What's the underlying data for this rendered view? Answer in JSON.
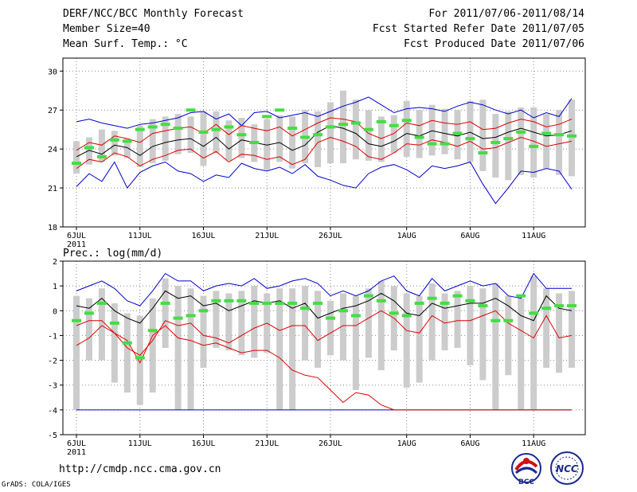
{
  "header": {
    "left": [
      "DERF/NCC/BCC Monthly Forecast",
      "Member Size=40",
      "Mean Surf. Temp.: °C"
    ],
    "right": [
      "For 2011/07/06-2011/08/14",
      "Fcst Started Refer Date 2011/07/05",
      "Fcst Produced Date 2011/07/06"
    ]
  },
  "footer": {
    "url": "http://cmdp.ncc.cma.gov.cn",
    "grads": "GrADS: COLA/IGES",
    "logo_bcc": "BCC",
    "logo_ncc": "NCC"
  },
  "colors": {
    "envelope": "#0000cc",
    "spread": "#dd0000",
    "mean": "#000000",
    "bar": "#cccccc",
    "member": "#44dd44"
  },
  "chart_data": [
    {
      "type": "line",
      "title": "Mean Surf. Temp.: °C",
      "xticks": [
        "6JUL",
        "11JUL",
        "16JUL",
        "21JUL",
        "26JUL",
        "1AUG",
        "6AUG",
        "11AUG"
      ],
      "year_label": "2011",
      "ylim": [
        18,
        31
      ],
      "yticks": [
        18,
        21,
        24,
        27,
        30
      ],
      "day0": "2011-07-06",
      "n_days": 40,
      "series": {
        "max": [
          26.1,
          26.3,
          26.0,
          25.8,
          25.6,
          25.9,
          26.0,
          26.2,
          26.4,
          26.8,
          26.9,
          26.3,
          26.7,
          25.8,
          26.8,
          26.9,
          26.4,
          26.6,
          26.8,
          26.5,
          26.9,
          27.3,
          27.6,
          28.0,
          27.4,
          26.8,
          27.1,
          27.2,
          27.1,
          26.9,
          27.3,
          27.6,
          27.4,
          27.0,
          26.7,
          27.0,
          26.4,
          26.8,
          26.5,
          27.9
        ],
        "upper": [
          23.9,
          24.5,
          24.3,
          25.0,
          24.8,
          24.5,
          25.2,
          25.4,
          25.6,
          25.7,
          25.2,
          25.9,
          25.1,
          25.8,
          25.6,
          25.4,
          25.7,
          25.0,
          25.5,
          26.0,
          26.4,
          26.3,
          26.1,
          25.2,
          24.8,
          25.2,
          26.0,
          25.8,
          26.2,
          26.0,
          25.9,
          26.1,
          25.5,
          25.6,
          26.0,
          26.3,
          26.1,
          25.7,
          25.9,
          26.3
        ],
        "mean": [
          23.4,
          23.9,
          23.6,
          24.3,
          24.1,
          23.5,
          24.2,
          24.5,
          24.7,
          24.8,
          24.2,
          24.9,
          24.0,
          24.7,
          24.5,
          24.3,
          24.5,
          23.9,
          24.3,
          25.3,
          25.8,
          25.6,
          25.2,
          24.4,
          24.2,
          24.6,
          25.2,
          25.0,
          25.4,
          25.2,
          25.0,
          25.3,
          24.8,
          24.9,
          25.3,
          25.6,
          25.3,
          25.0,
          25.1,
          25.4
        ],
        "lower": [
          22.5,
          23.2,
          23.0,
          23.7,
          23.4,
          22.7,
          23.2,
          23.5,
          23.9,
          24.0,
          23.3,
          23.8,
          23.0,
          23.6,
          23.5,
          23.2,
          23.4,
          22.8,
          23.2,
          24.5,
          24.9,
          24.6,
          24.2,
          23.4,
          23.2,
          23.7,
          24.4,
          24.3,
          24.7,
          24.5,
          24.2,
          24.6,
          24.0,
          24.1,
          24.5,
          24.9,
          24.6,
          24.2,
          24.4,
          24.6
        ],
        "min": [
          21.1,
          22.1,
          21.5,
          23.0,
          21.0,
          22.2,
          22.7,
          23.0,
          22.3,
          22.1,
          21.5,
          22.0,
          21.8,
          22.9,
          22.5,
          22.3,
          22.6,
          22.1,
          22.8,
          21.9,
          21.6,
          21.2,
          21.0,
          22.1,
          22.6,
          22.8,
          22.4,
          21.8,
          22.7,
          22.5,
          22.7,
          23.0,
          21.3,
          19.8,
          21.0,
          22.3,
          22.2,
          22.5,
          22.3,
          20.9
        ],
        "bar_top": [
          24.6,
          24.9,
          25.5,
          25.4,
          24.8,
          25.8,
          26.3,
          26.5,
          26.7,
          26.5,
          26.9,
          26.9,
          26.2,
          26.4,
          25.9,
          26.3,
          26.6,
          26.5,
          27.0,
          26.9,
          27.6,
          28.5,
          27.8,
          27.0,
          26.5,
          26.6,
          27.7,
          27.0,
          27.4,
          27.1,
          27.0,
          27.7,
          27.8,
          26.7,
          26.9,
          27.2,
          27.2,
          26.7,
          27.0,
          27.8
        ],
        "bar_bot": [
          22.1,
          22.8,
          23.0,
          23.5,
          23.3,
          22.6,
          22.9,
          23.1,
          23.6,
          23.7,
          22.7,
          23.7,
          23.1,
          23.3,
          23.0,
          22.4,
          23.0,
          22.5,
          22.9,
          22.6,
          22.9,
          22.9,
          23.2,
          23.1,
          23.0,
          23.7,
          23.4,
          23.3,
          23.5,
          23.6,
          23.2,
          23.0,
          22.3,
          21.8,
          21.6,
          22.0,
          21.8,
          22.5,
          22.0,
          21.9
        ],
        "member": [
          22.9,
          24.1,
          23.4,
          24.7,
          24.6,
          25.5,
          25.7,
          25.9,
          25.6,
          27.0,
          25.3,
          25.5,
          25.7,
          25.1,
          24.5,
          26.5,
          27.0,
          25.6,
          24.9,
          25.1,
          25.7,
          25.9,
          26.0,
          25.5,
          26.1,
          25.8,
          26.2,
          24.9,
          24.4,
          24.4,
          25.2,
          24.8,
          23.7,
          24.5,
          24.8,
          25.3,
          24.2,
          25.2,
          25.1,
          25.0
        ]
      }
    },
    {
      "type": "line",
      "title": "Prec.: log(mm/d)",
      "xticks": [
        "6JUL",
        "11JUL",
        "16JUL",
        "21JUL",
        "26JUL",
        "1AUG",
        "6AUG",
        "11AUG"
      ],
      "year_label": "2011",
      "ylim": [
        -5,
        2
      ],
      "yticks": [
        -5,
        -4,
        -3,
        -2,
        -1,
        0,
        1,
        2
      ],
      "day0": "2011-07-06",
      "n_days": 40,
      "series": {
        "max": [
          0.8,
          1.0,
          1.2,
          0.9,
          0.4,
          0.2,
          0.8,
          1.5,
          1.2,
          1.2,
          0.8,
          1.0,
          1.1,
          1.0,
          1.3,
          0.9,
          1.0,
          1.2,
          1.3,
          1.1,
          0.6,
          0.8,
          0.6,
          0.8,
          1.2,
          1.4,
          0.8,
          0.6,
          1.3,
          0.8,
          1.0,
          1.2,
          1.0,
          1.1,
          0.6,
          0.5,
          1.5,
          0.9,
          0.9,
          0.9
        ],
        "mean": [
          0.2,
          0.1,
          0.5,
          0.0,
          -0.3,
          -0.5,
          0.1,
          0.8,
          0.5,
          0.6,
          0.2,
          0.3,
          0.0,
          0.2,
          0.4,
          0.3,
          0.4,
          0.1,
          0.3,
          -0.3,
          -0.1,
          0.1,
          0.2,
          0.4,
          0.7,
          0.4,
          -0.1,
          -0.2,
          0.3,
          0.1,
          0.2,
          0.3,
          0.3,
          0.5,
          0.2,
          -0.2,
          -0.4,
          0.6,
          0.1,
          0.0
        ],
        "lower": [
          -1.4,
          -1.1,
          -0.6,
          -0.9,
          -1.5,
          -1.8,
          -1.2,
          -0.4,
          -0.6,
          -0.5,
          -1.0,
          -1.1,
          -1.3,
          -1.0,
          -0.7,
          -0.5,
          -0.8,
          -0.6,
          -0.6,
          -1.2,
          -0.9,
          -0.6,
          -0.6,
          -0.3,
          0.0,
          -0.3,
          -0.8,
          -0.9,
          -0.2,
          -0.5,
          -0.4,
          -0.4,
          -0.2,
          0.0,
          -0.5,
          -0.8,
          -1.1,
          -0.2,
          -1.1,
          -1.0
        ],
        "min": [
          -4.0,
          -4.0,
          -4.0,
          -4.0,
          -4.0,
          -4.0,
          -4.0,
          -4.0,
          -4.0,
          -4.0,
          -4.0,
          -4.0,
          -4.0,
          -4.0,
          -4.0,
          -4.0,
          -4.0,
          -4.0,
          -4.0,
          -4.0,
          -4.0,
          -4.0,
          -4.0,
          -4.0,
          -4.0,
          -4.0,
          -4.0,
          -4.0,
          -4.0,
          -4.0,
          -4.0,
          -4.0,
          -4.0,
          -4.0,
          -4.0,
          -4.0,
          -4.0,
          -4.0,
          -4.0,
          -4.0
        ],
        "low2": [
          -0.6,
          -0.4,
          -0.4,
          -0.9,
          -1.2,
          -2.1,
          -1.0,
          -0.6,
          -1.1,
          -1.2,
          -1.4,
          -1.3,
          -1.5,
          -1.7,
          -1.6,
          -1.6,
          -1.9,
          -2.4,
          -2.6,
          -2.7,
          -3.2,
          -3.7,
          -3.3,
          -3.4,
          -3.8,
          -4.0,
          -4.0,
          -4.0,
          -4.0,
          -4.0,
          -4.0,
          -4.0,
          -4.0,
          -4.0,
          -4.0,
          -4.0,
          -4.0,
          -4.0,
          -4.0,
          -4.0
        ],
        "bar_top": [
          0.6,
          0.5,
          0.9,
          0.3,
          -0.1,
          -0.2,
          0.5,
          1.3,
          1.0,
          0.9,
          0.6,
          0.8,
          0.7,
          0.8,
          1.0,
          0.7,
          0.9,
          0.9,
          1.0,
          0.8,
          0.4,
          0.7,
          0.6,
          0.9,
          1.2,
          1.0,
          0.7,
          0.6,
          1.1,
          0.7,
          0.8,
          1.0,
          0.9,
          1.1,
          0.6,
          0.5,
          1.4,
          0.9,
          0.7,
          0.8
        ],
        "bar_bot": [
          -4.0,
          -2.0,
          -2.0,
          -2.9,
          -3.3,
          -3.8,
          -3.3,
          -1.5,
          -4.0,
          -4.0,
          -2.3,
          -1.5,
          -1.6,
          -1.8,
          -1.9,
          -1.7,
          -4.0,
          -4.0,
          -2.0,
          -2.3,
          -1.8,
          -2.0,
          -3.2,
          -1.9,
          -2.4,
          -1.6,
          -3.1,
          -2.9,
          -2.0,
          -1.6,
          -1.5,
          -2.2,
          -2.8,
          -4.0,
          -2.6,
          -4.0,
          -4.0,
          -2.3,
          -2.5,
          -2.3
        ],
        "member": [
          -0.4,
          -0.1,
          0.3,
          -0.5,
          -1.3,
          -1.9,
          -0.8,
          0.3,
          -0.3,
          -0.2,
          0.0,
          0.4,
          0.4,
          0.4,
          0.3,
          0.3,
          0.3,
          0.3,
          0.1,
          0.3,
          -0.3,
          0.0,
          -0.2,
          0.6,
          0.4,
          -0.1,
          -0.2,
          0.3,
          0.5,
          0.3,
          0.6,
          0.4,
          0.2,
          -0.4,
          -0.4,
          0.6,
          -0.1,
          0.1,
          0.2,
          0.2
        ]
      }
    }
  ]
}
